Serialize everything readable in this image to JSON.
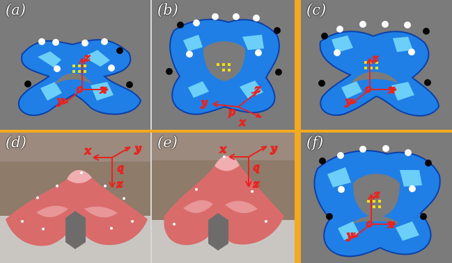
{
  "panels": [
    {
      "id": "a",
      "label": "(a)",
      "kind": "simulation",
      "frame_label": "o",
      "axes": {
        "x": "x",
        "y": "y",
        "z": "z"
      }
    },
    {
      "id": "b",
      "label": "(b)",
      "kind": "simulation",
      "frame_label": "p",
      "axes": {
        "x": "x",
        "y": "y",
        "z": "z"
      }
    },
    {
      "id": "c",
      "label": "(c)",
      "kind": "simulation",
      "frame_label": "o",
      "axes": {
        "x": "x",
        "y": "y",
        "z": "z"
      }
    },
    {
      "id": "d",
      "label": "(d)",
      "kind": "photo",
      "frame_label": "q",
      "axes": {
        "x": "x",
        "y": "y",
        "z": "z"
      }
    },
    {
      "id": "e",
      "label": "(e)",
      "kind": "photo",
      "frame_label": "q",
      "axes": {
        "x": "x",
        "y": "y",
        "z": "z"
      }
    },
    {
      "id": "f",
      "label": "(f)",
      "kind": "simulation",
      "frame_label": "o",
      "axes": {
        "x": "x",
        "y": "y",
        "z": "z"
      }
    }
  ],
  "colors": {
    "mesh_fill": "#1f7fe6",
    "mesh_light": "#7fe3ff",
    "mesh_dark": "#0b3fa8",
    "marker_white": "#ffffff",
    "marker_black": "#050505",
    "axis_red": "#e8231f",
    "target_yellow": "#f5e20b",
    "divider_orange": "#f3aa1f",
    "sim_background": "#7b7b7b",
    "photo_background": "#8e7b6a",
    "robot_red": "#d96b6b",
    "robot_light": "#f0aeb0"
  }
}
